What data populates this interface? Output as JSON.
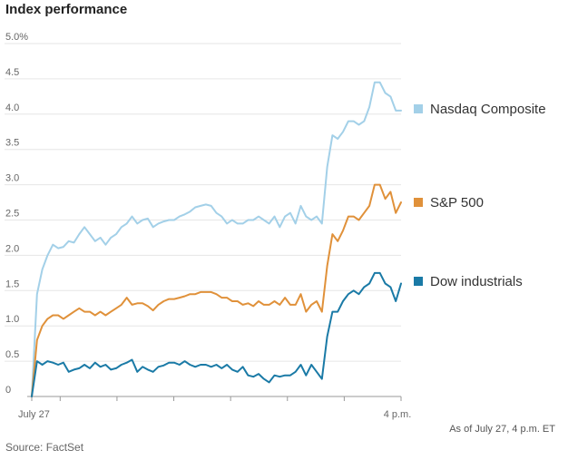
{
  "chart_data": {
    "type": "line",
    "title": "Index performance",
    "xlabel": "",
    "ylabel": "",
    "ylim": [
      0,
      5.0
    ],
    "y_ticks": [
      "5.0%",
      "4.5",
      "4.0",
      "3.5",
      "3.0",
      "2.5",
      "2.0",
      "1.5",
      "1.0",
      "0.5",
      "0"
    ],
    "x_tick_labels": [
      "July 27",
      "4 p.m."
    ],
    "grid": true,
    "legend_placement": "right",
    "series": [
      {
        "name": "Nasdaq Composite",
        "color": "#a3d0e8",
        "values": [
          0,
          1.45,
          1.8,
          2.0,
          2.15,
          2.1,
          2.12,
          2.2,
          2.18,
          2.3,
          2.4,
          2.3,
          2.2,
          2.25,
          2.15,
          2.25,
          2.3,
          2.4,
          2.45,
          2.55,
          2.45,
          2.5,
          2.52,
          2.4,
          2.45,
          2.48,
          2.5,
          2.5,
          2.55,
          2.58,
          2.62,
          2.68,
          2.7,
          2.72,
          2.7,
          2.6,
          2.55,
          2.45,
          2.5,
          2.45,
          2.45,
          2.5,
          2.5,
          2.55,
          2.5,
          2.45,
          2.55,
          2.4,
          2.55,
          2.6,
          2.45,
          2.7,
          2.55,
          2.5,
          2.55,
          2.45,
          3.25,
          3.7,
          3.65,
          3.75,
          3.9,
          3.9,
          3.85,
          3.9,
          4.1,
          4.45,
          4.45,
          4.3,
          4.25,
          4.05,
          4.05
        ]
      },
      {
        "name": "S&P 500",
        "color": "#e0913a",
        "values": [
          0,
          0.8,
          1.0,
          1.1,
          1.15,
          1.15,
          1.1,
          1.15,
          1.2,
          1.25,
          1.2,
          1.2,
          1.15,
          1.2,
          1.15,
          1.2,
          1.25,
          1.3,
          1.4,
          1.3,
          1.32,
          1.32,
          1.28,
          1.22,
          1.3,
          1.35,
          1.38,
          1.38,
          1.4,
          1.42,
          1.45,
          1.45,
          1.48,
          1.48,
          1.48,
          1.45,
          1.4,
          1.4,
          1.35,
          1.35,
          1.3,
          1.32,
          1.28,
          1.35,
          1.3,
          1.3,
          1.35,
          1.3,
          1.4,
          1.3,
          1.3,
          1.45,
          1.2,
          1.3,
          1.35,
          1.2,
          1.85,
          2.3,
          2.2,
          2.35,
          2.55,
          2.55,
          2.5,
          2.6,
          2.7,
          3.0,
          3.0,
          2.8,
          2.9,
          2.6,
          2.75
        ]
      },
      {
        "name": "Dow industrials",
        "color": "#1a7aa6",
        "values": [
          0,
          0.5,
          0.45,
          0.5,
          0.48,
          0.45,
          0.48,
          0.35,
          0.38,
          0.4,
          0.45,
          0.4,
          0.48,
          0.42,
          0.45,
          0.38,
          0.4,
          0.45,
          0.48,
          0.52,
          0.35,
          0.42,
          0.38,
          0.35,
          0.42,
          0.44,
          0.48,
          0.48,
          0.45,
          0.5,
          0.45,
          0.42,
          0.45,
          0.45,
          0.42,
          0.45,
          0.4,
          0.45,
          0.38,
          0.35,
          0.42,
          0.3,
          0.28,
          0.32,
          0.25,
          0.2,
          0.3,
          0.28,
          0.3,
          0.3,
          0.35,
          0.45,
          0.3,
          0.45,
          0.35,
          0.25,
          0.85,
          1.2,
          1.2,
          1.35,
          1.45,
          1.5,
          1.45,
          1.55,
          1.6,
          1.75,
          1.75,
          1.6,
          1.55,
          1.35,
          1.6
        ]
      }
    ]
  },
  "footer": {
    "as_of": "As of July 27, 4 p.m. ET",
    "source": "Source: FactSet"
  }
}
